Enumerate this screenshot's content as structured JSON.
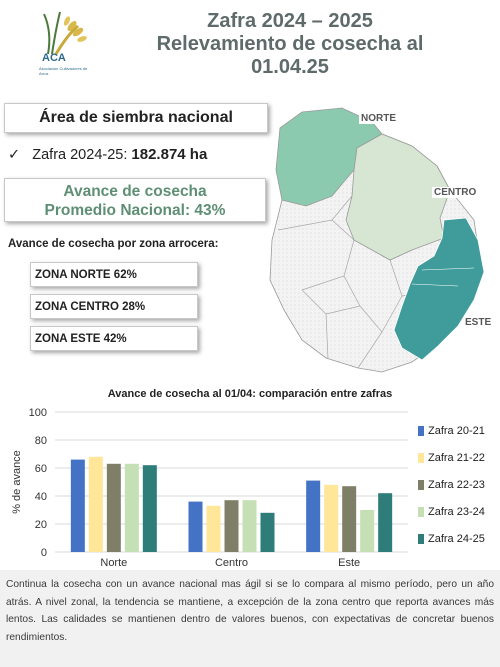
{
  "header": {
    "logo_text": "ACA",
    "logo_subtext": "Asociación Cultivadores de Arroz",
    "title_line1": "Zafra 2024 – 2025",
    "title_line2": "Relevamiento de cosecha al",
    "title_line3": "01.04.25"
  },
  "summary": {
    "area_title": "Área de siembra nacional",
    "check_mark": "✓",
    "zafra_label": "Zafra 2024-25:",
    "zafra_value": "182.874 ha",
    "avance_line1": "Avance de cosecha",
    "avance_line2": "Promedio Nacional: 43%",
    "zone_heading": "Avance de cosecha por zona arrocera:",
    "zones": [
      "ZONA NORTE 62%",
      "ZONA CENTRO 28%",
      "ZONA ESTE 42%"
    ]
  },
  "map": {
    "labels": {
      "norte": "NORTE",
      "centro": "CENTRO",
      "este": "ESTE"
    },
    "colors": {
      "norte": "#8ccab0",
      "centro": "#d6e6d2",
      "este": "#3f9c9a",
      "other": "#f4f4f4",
      "border": "#9a9a9a"
    }
  },
  "chart_data": {
    "type": "bar",
    "title": "Avance de cosecha al 01/04: comparación entre zafras",
    "ylabel": "% de avance",
    "xlabel": "",
    "ylim": [
      0,
      100
    ],
    "yticks": [
      0,
      20,
      40,
      60,
      80,
      100
    ],
    "grid": true,
    "legend": "right",
    "categories": [
      "Norte",
      "Centro",
      "Este"
    ],
    "series": [
      {
        "name": "Zafra 20-21",
        "color": "#4472c4",
        "values": [
          66,
          36,
          51
        ]
      },
      {
        "name": "Zafra 21-22",
        "color": "#ffe699",
        "values": [
          68,
          33,
          48
        ]
      },
      {
        "name": "Zafra 22-23",
        "color": "#7f7f67",
        "values": [
          63,
          37,
          47
        ]
      },
      {
        "name": "Zafra 23-24",
        "color": "#c5e0b4",
        "values": [
          63,
          37,
          30
        ]
      },
      {
        "name": "Zafra 24-25",
        "color": "#2e7d78",
        "values": [
          62,
          28,
          42
        ]
      }
    ]
  },
  "footer": {
    "text": "Continua la cosecha con un avance nacional mas ágil si se lo compara al mismo período, pero un año atrás. A nivel zonal, la tendencia se mantiene, a excepción de la zona centro que reporta avances más lentos. Las calidades se mantienen dentro de valores buenos, con expectativas de concretar buenos rendimientos."
  }
}
